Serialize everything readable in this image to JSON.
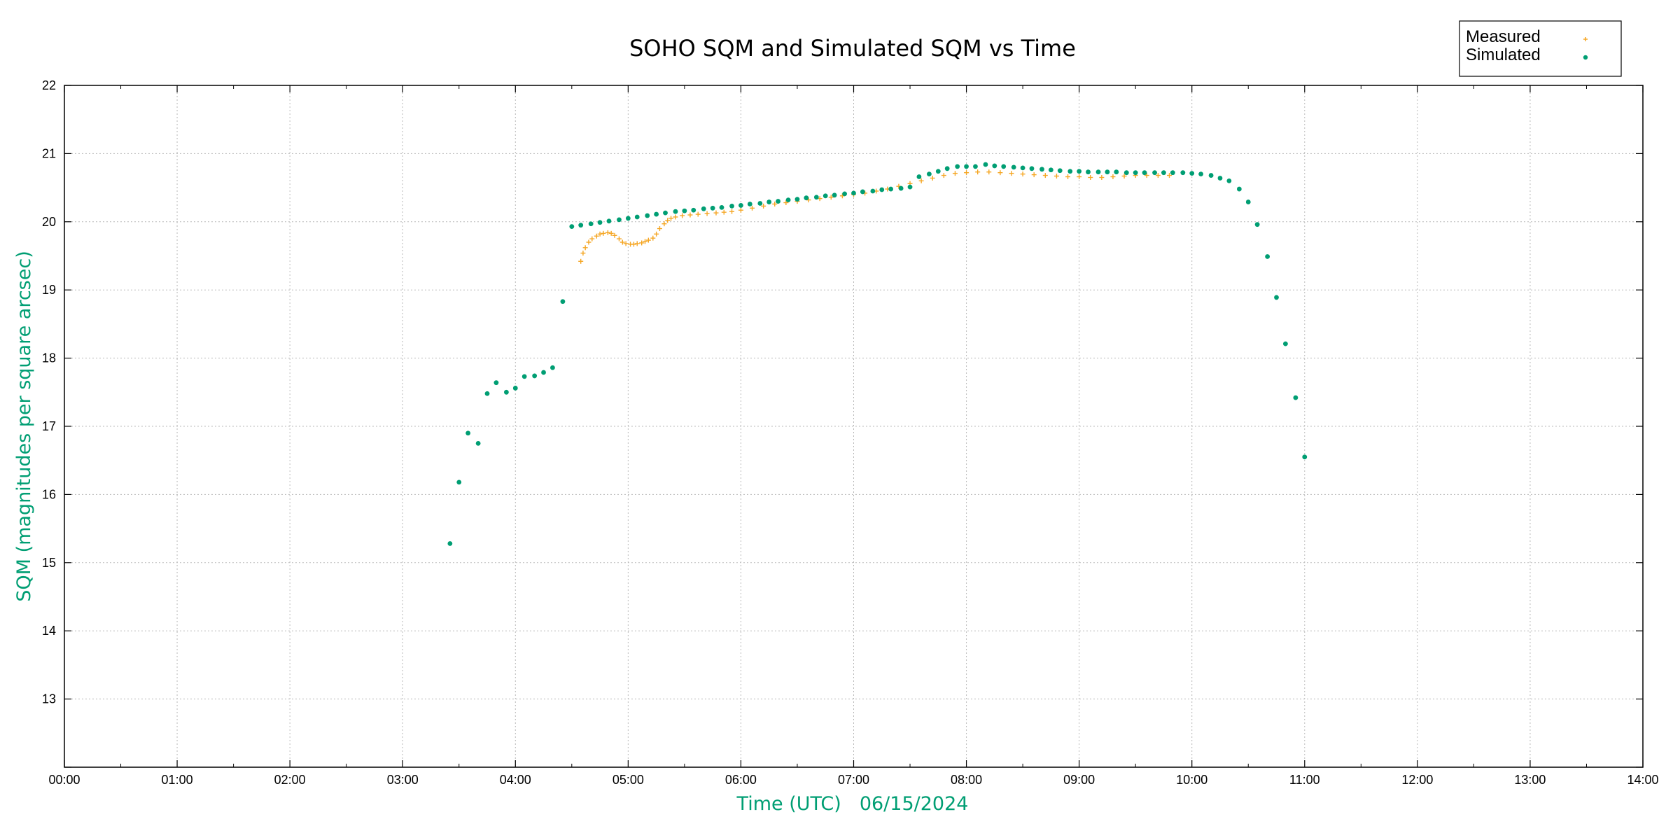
{
  "chart_data": {
    "type": "scatter",
    "title": "SOHO SQM and Simulated SQM vs Time",
    "xlabel": "Time (UTC)",
    "xlabel_date": "06/15/2024",
    "ylabel": "SQM (magnitudes per square arcsec)",
    "xlim": [
      0,
      14
    ],
    "ylim": [
      12,
      22
    ],
    "x_units": "hours UTC",
    "x_tick_labels": [
      "00:00",
      "01:00",
      "02:00",
      "03:00",
      "04:00",
      "05:00",
      "06:00",
      "07:00",
      "08:00",
      "09:00",
      "10:00",
      "11:00",
      "12:00",
      "13:00",
      "14:00"
    ],
    "y_tick_labels": [
      "13",
      "14",
      "15",
      "16",
      "17",
      "18",
      "19",
      "20",
      "21",
      "22"
    ],
    "grid": true,
    "legend_position": "top-right",
    "colors": {
      "measured": "#f5a623",
      "simulated": "#009e73",
      "axis_label": "#009e73"
    },
    "series": [
      {
        "name": "Measured",
        "marker": "plus",
        "color": "#f5a623",
        "points": [
          [
            4.58,
            19.42
          ],
          [
            4.6,
            19.54
          ],
          [
            4.62,
            19.62
          ],
          [
            4.65,
            19.7
          ],
          [
            4.68,
            19.75
          ],
          [
            4.72,
            19.79
          ],
          [
            4.75,
            19.82
          ],
          [
            4.78,
            19.83
          ],
          [
            4.82,
            19.84
          ],
          [
            4.85,
            19.83
          ],
          [
            4.88,
            19.8
          ],
          [
            4.92,
            19.75
          ],
          [
            4.95,
            19.7
          ],
          [
            4.98,
            19.68
          ],
          [
            5.02,
            19.67
          ],
          [
            5.05,
            19.67
          ],
          [
            5.08,
            19.68
          ],
          [
            5.12,
            19.69
          ],
          [
            5.15,
            19.71
          ],
          [
            5.18,
            19.73
          ],
          [
            5.22,
            19.76
          ],
          [
            5.25,
            19.82
          ],
          [
            5.28,
            19.9
          ],
          [
            5.32,
            19.97
          ],
          [
            5.35,
            20.02
          ],
          [
            5.38,
            20.05
          ],
          [
            5.42,
            20.07
          ],
          [
            5.48,
            20.09
          ],
          [
            5.55,
            20.1
          ],
          [
            5.62,
            20.11
          ],
          [
            5.7,
            20.12
          ],
          [
            5.78,
            20.13
          ],
          [
            5.85,
            20.14
          ],
          [
            5.92,
            20.15
          ],
          [
            6.0,
            20.17
          ],
          [
            6.1,
            20.2
          ],
          [
            6.2,
            20.23
          ],
          [
            6.3,
            20.26
          ],
          [
            6.4,
            20.28
          ],
          [
            6.5,
            20.3
          ],
          [
            6.6,
            20.32
          ],
          [
            6.7,
            20.34
          ],
          [
            6.8,
            20.36
          ],
          [
            6.9,
            20.38
          ],
          [
            7.0,
            20.4
          ],
          [
            7.1,
            20.42
          ],
          [
            7.2,
            20.45
          ],
          [
            7.3,
            20.48
          ],
          [
            7.4,
            20.52
          ],
          [
            7.5,
            20.56
          ],
          [
            7.6,
            20.6
          ],
          [
            7.7,
            20.64
          ],
          [
            7.8,
            20.68
          ],
          [
            7.9,
            20.71
          ],
          [
            8.0,
            20.72
          ],
          [
            8.1,
            20.73
          ],
          [
            8.2,
            20.73
          ],
          [
            8.3,
            20.72
          ],
          [
            8.4,
            20.71
          ],
          [
            8.5,
            20.7
          ],
          [
            8.6,
            20.69
          ],
          [
            8.7,
            20.68
          ],
          [
            8.8,
            20.67
          ],
          [
            8.9,
            20.66
          ],
          [
            9.0,
            20.66
          ],
          [
            9.1,
            20.65
          ],
          [
            9.2,
            20.65
          ],
          [
            9.3,
            20.66
          ],
          [
            9.4,
            20.67
          ],
          [
            9.5,
            20.68
          ],
          [
            9.6,
            20.68
          ],
          [
            9.7,
            20.68
          ],
          [
            9.8,
            20.68
          ]
        ]
      },
      {
        "name": "Simulated",
        "marker": "dot",
        "color": "#009e73",
        "points": [
          [
            3.42,
            15.28
          ],
          [
            3.5,
            16.18
          ],
          [
            3.58,
            16.9
          ],
          [
            3.67,
            16.75
          ],
          [
            3.75,
            17.48
          ],
          [
            3.83,
            17.64
          ],
          [
            3.92,
            17.5
          ],
          [
            4.0,
            17.56
          ],
          [
            4.08,
            17.73
          ],
          [
            4.17,
            17.74
          ],
          [
            4.25,
            17.79
          ],
          [
            4.33,
            17.86
          ],
          [
            4.42,
            18.83
          ],
          [
            4.5,
            19.93
          ],
          [
            4.58,
            19.95
          ],
          [
            4.67,
            19.97
          ],
          [
            4.75,
            19.99
          ],
          [
            4.83,
            20.01
          ],
          [
            4.92,
            20.03
          ],
          [
            5.0,
            20.05
          ],
          [
            5.08,
            20.07
          ],
          [
            5.17,
            20.09
          ],
          [
            5.25,
            20.11
          ],
          [
            5.33,
            20.13
          ],
          [
            5.42,
            20.15
          ],
          [
            5.5,
            20.16
          ],
          [
            5.58,
            20.17
          ],
          [
            5.67,
            20.19
          ],
          [
            5.75,
            20.2
          ],
          [
            5.83,
            20.21
          ],
          [
            5.92,
            20.23
          ],
          [
            6.0,
            20.24
          ],
          [
            6.08,
            20.26
          ],
          [
            6.17,
            20.27
          ],
          [
            6.25,
            20.29
          ],
          [
            6.33,
            20.3
          ],
          [
            6.42,
            20.32
          ],
          [
            6.5,
            20.33
          ],
          [
            6.58,
            20.35
          ],
          [
            6.67,
            20.36
          ],
          [
            6.75,
            20.38
          ],
          [
            6.83,
            20.39
          ],
          [
            6.92,
            20.41
          ],
          [
            7.0,
            20.42
          ],
          [
            7.08,
            20.44
          ],
          [
            7.17,
            20.45
          ],
          [
            7.25,
            20.47
          ],
          [
            7.33,
            20.48
          ],
          [
            7.42,
            20.49
          ],
          [
            7.5,
            20.51
          ],
          [
            7.58,
            20.66
          ],
          [
            7.67,
            20.7
          ],
          [
            7.75,
            20.74
          ],
          [
            7.83,
            20.78
          ],
          [
            7.92,
            20.81
          ],
          [
            8.0,
            20.81
          ],
          [
            8.08,
            20.81
          ],
          [
            8.17,
            20.84
          ],
          [
            8.25,
            20.82
          ],
          [
            8.33,
            20.81
          ],
          [
            8.42,
            20.8
          ],
          [
            8.5,
            20.79
          ],
          [
            8.58,
            20.78
          ],
          [
            8.67,
            20.77
          ],
          [
            8.75,
            20.76
          ],
          [
            8.83,
            20.75
          ],
          [
            8.92,
            20.74
          ],
          [
            9.0,
            20.74
          ],
          [
            9.08,
            20.73
          ],
          [
            9.17,
            20.73
          ],
          [
            9.25,
            20.73
          ],
          [
            9.33,
            20.73
          ],
          [
            9.42,
            20.72
          ],
          [
            9.5,
            20.72
          ],
          [
            9.58,
            20.72
          ],
          [
            9.67,
            20.72
          ],
          [
            9.75,
            20.72
          ],
          [
            9.83,
            20.72
          ],
          [
            9.92,
            20.72
          ],
          [
            10.0,
            20.71
          ],
          [
            10.08,
            20.7
          ],
          [
            10.17,
            20.68
          ],
          [
            10.25,
            20.64
          ],
          [
            10.33,
            20.6
          ],
          [
            10.42,
            20.48
          ],
          [
            10.5,
            20.29
          ],
          [
            10.58,
            19.96
          ],
          [
            10.67,
            19.49
          ],
          [
            10.75,
            18.89
          ],
          [
            10.83,
            18.21
          ],
          [
            10.92,
            17.42
          ],
          [
            11.0,
            16.55
          ]
        ]
      }
    ]
  }
}
